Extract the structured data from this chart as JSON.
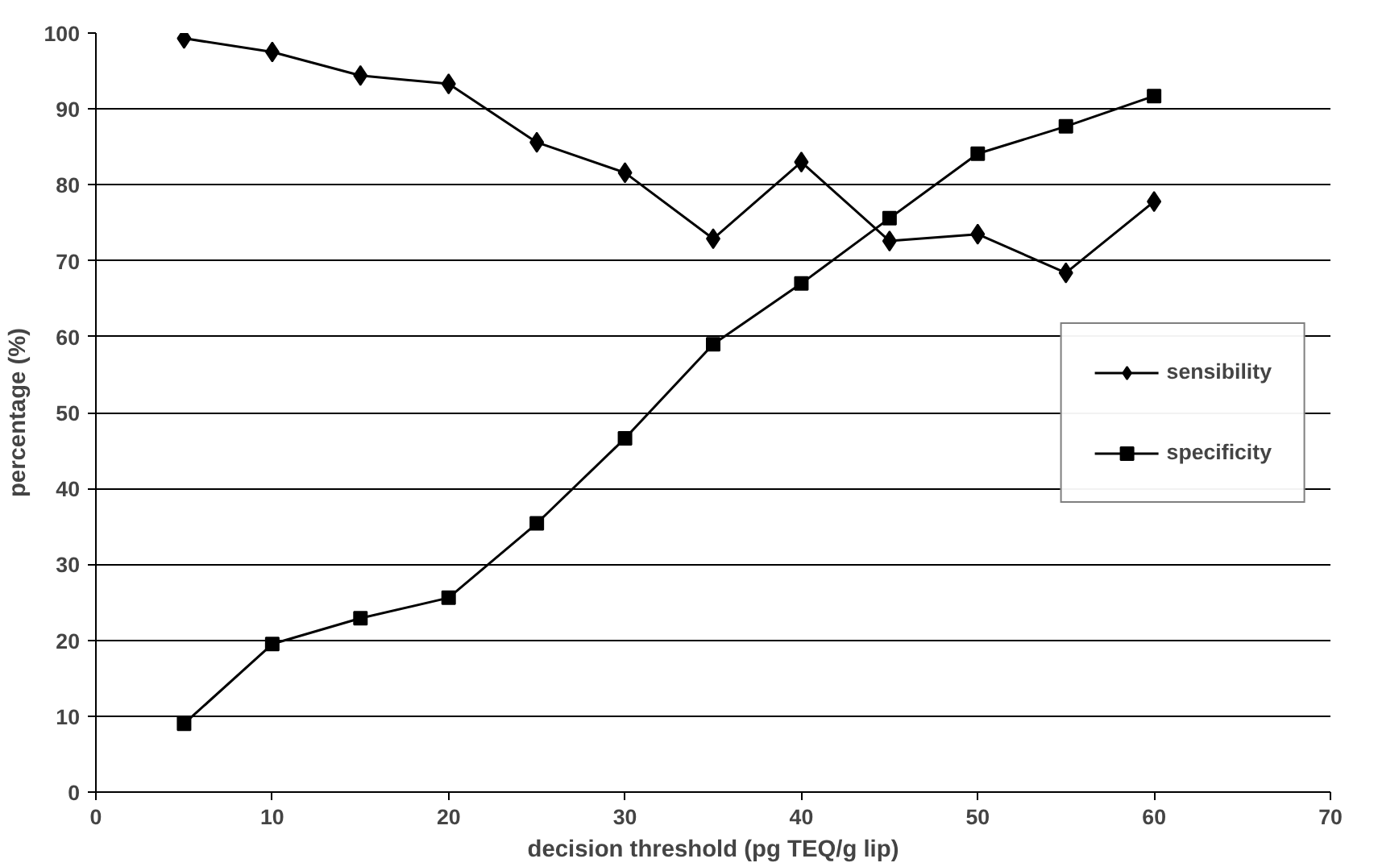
{
  "chart_data": {
    "type": "line",
    "xlabel": "decision threshold (pg TEQ/g lip)",
    "ylabel": "percentage (%)",
    "x": [
      5,
      10,
      15,
      20,
      25,
      30,
      35,
      40,
      45,
      50,
      55,
      60
    ],
    "series": [
      {
        "name": "sensibility",
        "color": "#000000",
        "marker": "diamond",
        "values": [
          99.3,
          97.5,
          94.4,
          93.3,
          85.6,
          81.6,
          72.9,
          83.0,
          72.6,
          73.5,
          68.4,
          77.8
        ]
      },
      {
        "name": "specificity",
        "color": "#000000",
        "marker": "square",
        "values": [
          9.0,
          19.5,
          22.9,
          25.6,
          35.4,
          46.6,
          59.0,
          67.0,
          75.6,
          84.1,
          87.7,
          91.7
        ]
      }
    ],
    "xlim": [
      0,
      70
    ],
    "xticks": [
      0,
      10,
      20,
      30,
      40,
      50,
      60,
      70
    ],
    "ylim": [
      0,
      100
    ],
    "yticks": [
      0,
      10,
      20,
      30,
      40,
      50,
      60,
      70,
      80,
      90,
      100
    ],
    "grid": "y",
    "legend": "right",
    "line_style": "solid"
  }
}
